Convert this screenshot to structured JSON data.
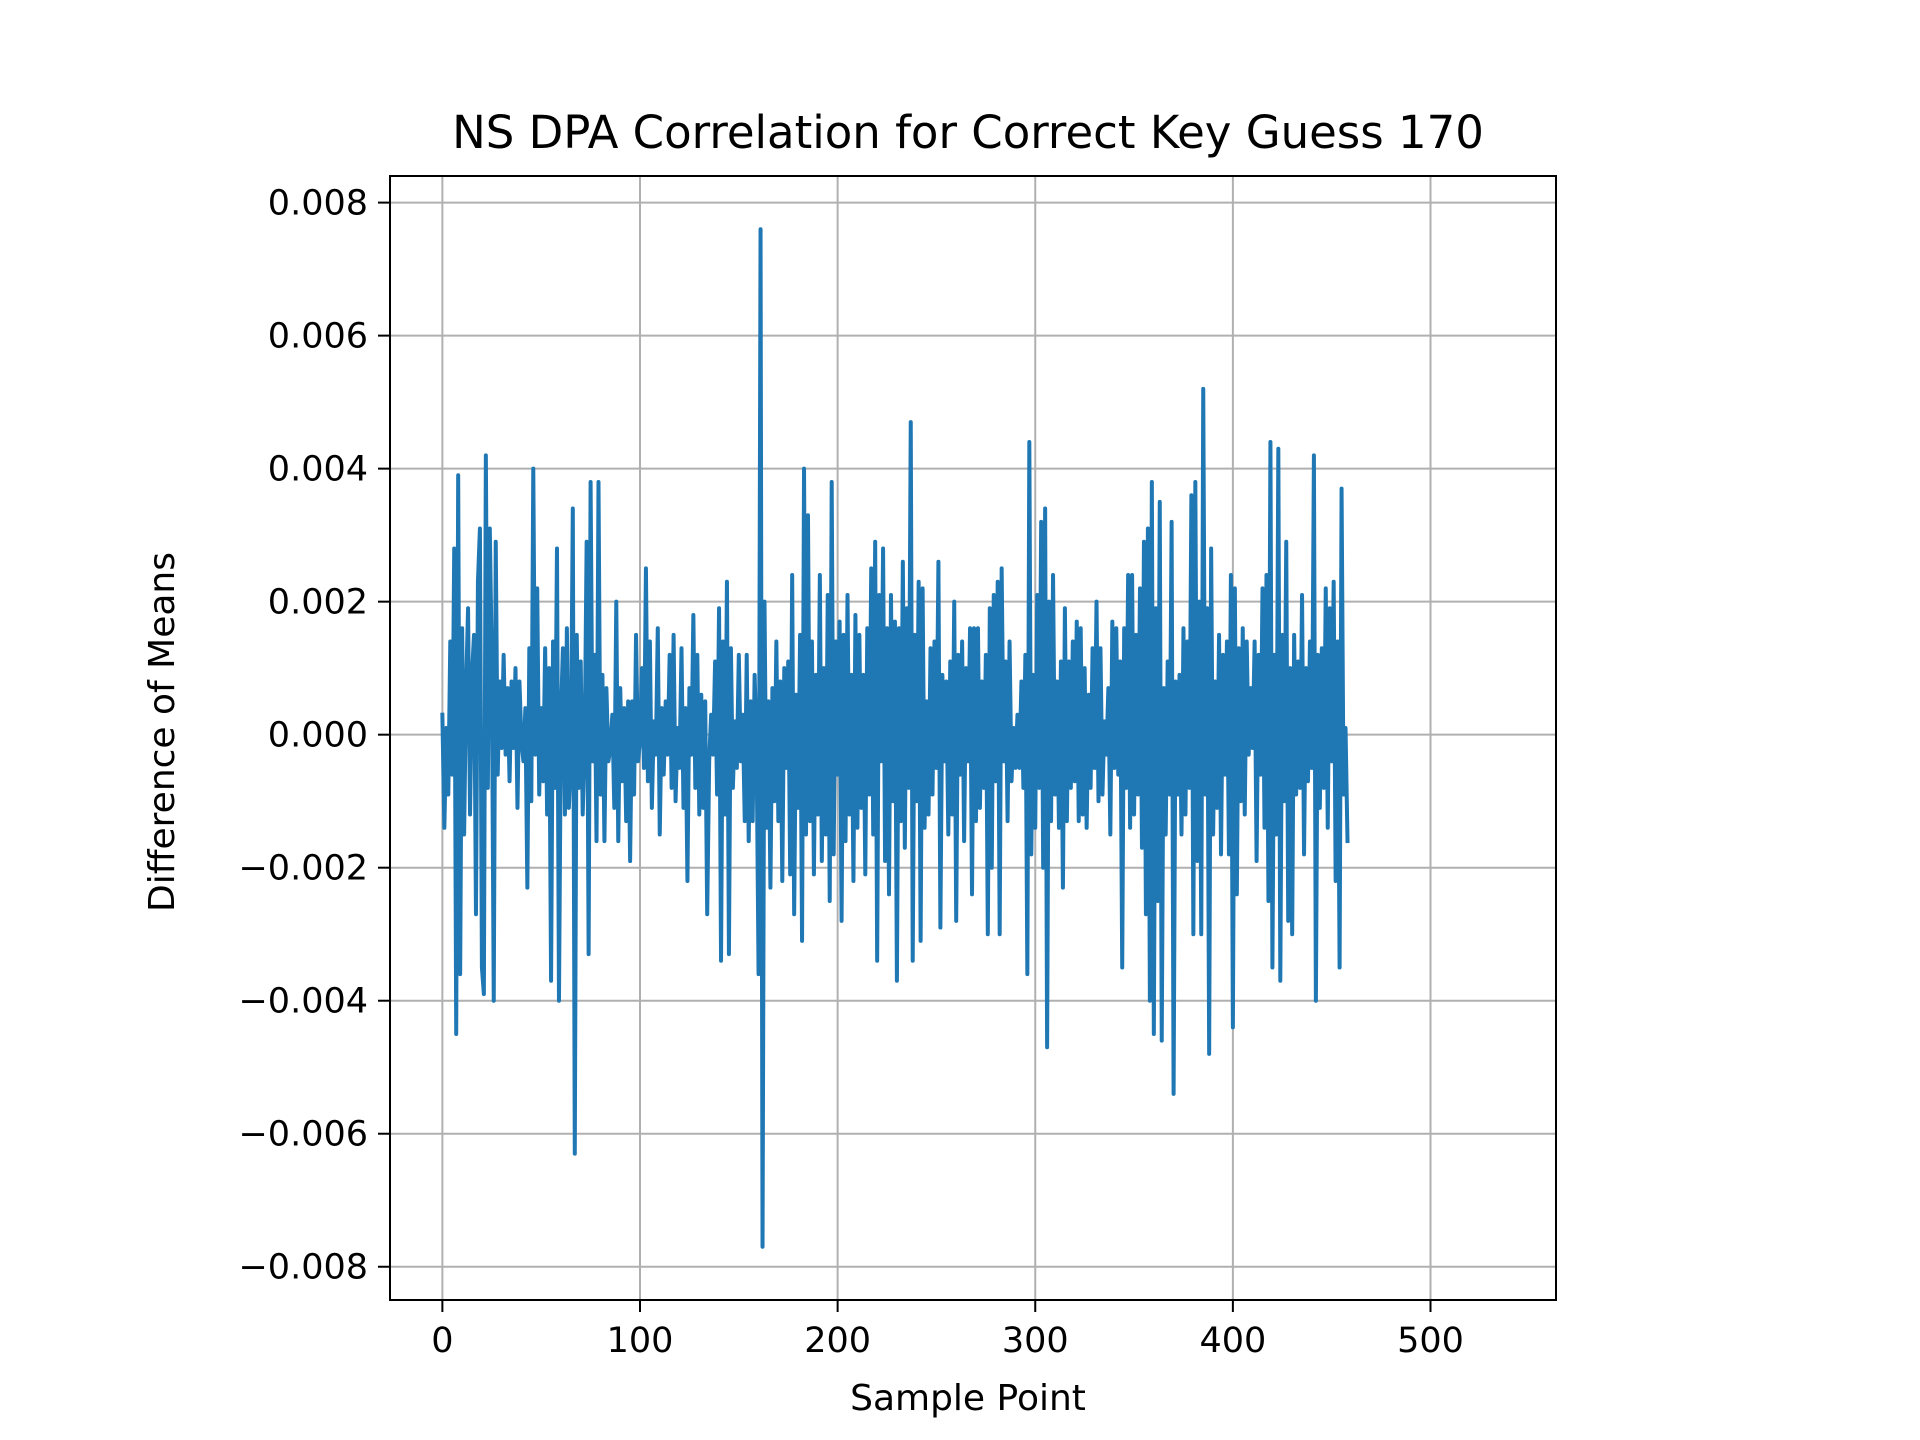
{
  "chart_data": {
    "type": "line",
    "title": "NS DPA Correlation for Correct Key Guess 170",
    "xlabel": "Sample Point",
    "ylabel": "Difference of Means",
    "xlim": [
      -26.5,
      563.5
    ],
    "ylim": [
      -0.0085,
      0.0084
    ],
    "x_ticks": [
      0,
      100,
      200,
      300,
      400,
      500
    ],
    "x_tick_labels": [
      "0",
      "100",
      "200",
      "300",
      "400",
      "500"
    ],
    "y_ticks": [
      -0.008,
      -0.006,
      -0.004,
      -0.002,
      0.0,
      0.002,
      0.004,
      0.006,
      0.008
    ],
    "y_tick_labels": [
      "−0.008",
      "−0.006",
      "−0.004",
      "−0.002",
      "0.000",
      "0.002",
      "0.004",
      "0.006",
      "0.008"
    ],
    "grid": true,
    "legend": "none",
    "series": [
      {
        "color": "#1f77b4",
        "x_start": 0,
        "x_step": 1,
        "values": [
          0.0003,
          -0.0014,
          0.0001,
          -0.0009,
          0.0014,
          -0.0006,
          0.0028,
          -0.0045,
          0.0039,
          -0.0036,
          0.0016,
          -0.0015,
          0.0007,
          0.0019,
          -0.0012,
          0.0009,
          0.0015,
          -0.0027,
          0.0023,
          0.0031,
          -0.0035,
          -0.0039,
          0.0042,
          -0.0008,
          0.0031,
          0.0011,
          -0.004,
          0.0029,
          -0.0006,
          0.0008,
          -0.0002,
          0.0012,
          -0.0003,
          0.0007,
          -0.0007,
          0.0008,
          -0.0002,
          0.001,
          -0.0011,
          0.0008,
          -0.0001,
          -0.0004,
          0.0004,
          -0.0023,
          0.0013,
          -0.001,
          0.004,
          -0.0003,
          0.0022,
          -0.0009,
          0.0004,
          -0.0007,
          0.0013,
          -0.0012,
          0.001,
          -0.0037,
          0.0014,
          -0.0008,
          0.0028,
          -0.004,
          0.0003,
          0.0013,
          -0.0012,
          0.0016,
          -0.0011,
          -0.0004,
          0.0034,
          -0.0063,
          0.0015,
          -0.0008,
          0.0011,
          -0.0012,
          -0.0002,
          0.0029,
          -0.0033,
          0.0038,
          -0.0004,
          0.0012,
          -0.0016,
          0.0038,
          -0.0009,
          0.0009,
          -0.0016,
          0.0007,
          -0.0004,
          -0.0002,
          0.0003,
          -0.0011,
          0.002,
          -0.0016,
          0.0007,
          -0.0007,
          0.0004,
          -0.0013,
          0.0005,
          -0.0019,
          0.0005,
          -0.0009,
          0.0015,
          -0.0004,
          -0.0001,
          0.001,
          -0.0005,
          0.0025,
          -0.0007,
          0.0014,
          -0.0011,
          0.0002,
          -0.0003,
          0.0016,
          -0.0015,
          0.0004,
          -0.0006,
          0.0005,
          -0.0003,
          0.0012,
          -0.0008,
          0.0015,
          -0.001,
          0.0001,
          -0.0005,
          0.0013,
          -0.0011,
          0.0004,
          -0.0022,
          0.0007,
          -0.0003,
          0.0018,
          -0.0008,
          0.0012,
          -0.0012,
          0.0006,
          -0.0011,
          0.0005,
          -0.0027,
          -0.0004,
          0.0003,
          -0.0003,
          0.0011,
          -0.0009,
          0.0019,
          -0.0034,
          0.0014,
          -0.0012,
          0.0023,
          -0.0033,
          0.0013,
          -0.0008,
          0.0002,
          -0.0005,
          0.0012,
          -0.0004,
          0.0003,
          -0.0013,
          0.0012,
          -0.0016,
          0.0005,
          -0.0013,
          0.0009,
          -0.0002,
          -0.0036,
          0.0076,
          -0.0077,
          0.002,
          -0.0014,
          0.0005,
          -0.0023,
          0.0007,
          -0.001,
          0.0014,
          -0.0013,
          0.0008,
          -0.0022,
          0.001,
          -0.0005,
          0.0011,
          -0.0021,
          0.0024,
          -0.0027,
          0.0006,
          -0.0011,
          0.0015,
          -0.0031,
          0.004,
          -0.0015,
          0.0033,
          -0.0013,
          0.0014,
          -0.0021,
          0.0009,
          -0.0012,
          0.0024,
          -0.0019,
          0.001,
          -0.0015,
          0.0021,
          -0.0025,
          0.0038,
          -0.0018,
          0.0014,
          -0.0006,
          0.0017,
          -0.0028,
          0.0015,
          -0.0016,
          0.0021,
          -0.0012,
          0.0009,
          -0.0022,
          0.0018,
          -0.0014,
          0.0015,
          -0.0011,
          0.0009,
          -0.0021,
          0.0016,
          -0.0009,
          0.0025,
          -0.0015,
          0.0029,
          -0.0034,
          0.0021,
          -0.0004,
          0.0028,
          -0.0019,
          0.0016,
          -0.0024,
          0.0021,
          -0.001,
          0.0017,
          -0.0037,
          0.0016,
          -0.0013,
          0.0026,
          -0.0017,
          0.0019,
          -0.0008,
          0.0047,
          -0.0034,
          0.0015,
          -0.001,
          0.0023,
          -0.0031,
          0.0022,
          -0.0014,
          0.0005,
          -0.0012,
          0.0013,
          -0.0009,
          0.0014,
          -0.0005,
          0.0026,
          -0.0029,
          0.0009,
          -0.0004,
          0.0008,
          -0.0015,
          0.0011,
          -0.0012,
          0.002,
          -0.0028,
          0.0012,
          -0.0006,
          0.0014,
          -0.0016,
          0.001,
          -0.0004,
          0.0016,
          -0.0024,
          0.0016,
          -0.0013,
          0.0016,
          -0.0011,
          0.0008,
          -0.0008,
          0.0012,
          -0.003,
          0.0019,
          -0.002,
          0.0021,
          -0.0007,
          0.0023,
          -0.003,
          0.0025,
          -0.0004,
          0.0011,
          -0.0013,
          0.0014,
          -0.0007,
          0.0001,
          -0.0005,
          0.0003,
          -0.0005,
          0.0008,
          -0.0008,
          0.0012,
          -0.0036,
          0.0044,
          -0.0018,
          0.0009,
          -0.0014,
          0.0021,
          -0.0008,
          0.0032,
          -0.002,
          0.0034,
          -0.0047,
          0.002,
          -0.0013,
          0.0024,
          -0.0009,
          0.0008,
          -0.0014,
          0.0011,
          -0.0023,
          0.0019,
          -0.0013,
          0.0011,
          -0.0008,
          0.0014,
          -0.0007,
          0.0017,
          -0.0013,
          0.0016,
          -0.0012,
          0.001,
          -0.0014,
          0.0006,
          -0.0008,
          0.0013,
          -0.0005,
          0.002,
          -0.001,
          0.0013,
          -0.0009,
          0.0002,
          -0.0003,
          0.0007,
          -0.0015,
          0.0017,
          -0.0005,
          0.0016,
          -0.0006,
          0.0011,
          -0.0035,
          0.0016,
          -0.0008,
          0.0024,
          -0.0014,
          0.0024,
          -0.0012,
          0.0015,
          -0.0009,
          0.0022,
          -0.0017,
          0.0029,
          -0.0027,
          0.0031,
          -0.004,
          0.0038,
          -0.0045,
          0.0019,
          -0.0025,
          0.0035,
          -0.0046,
          0.0007,
          -0.0015,
          0.0011,
          -0.0009,
          0.0032,
          -0.0054,
          0.0008,
          -0.0009,
          0.0009,
          -0.0015,
          0.0016,
          -0.0012,
          0.0014,
          -0.0008,
          0.0036,
          -0.003,
          0.0038,
          -0.0019,
          0.002,
          -0.003,
          0.0052,
          -0.0009,
          0.0019,
          -0.0048,
          0.0028,
          -0.0015,
          0.0008,
          -0.0011,
          0.0015,
          -0.0018,
          0.0012,
          -0.0006,
          0.0014,
          -0.0018,
          0.0024,
          -0.0044,
          0.0022,
          -0.0024,
          0.0013,
          -0.001,
          0.0016,
          -0.0012,
          0.0014,
          -0.0003,
          0.0007,
          -0.0002,
          0.0014,
          -0.0019,
          0.0012,
          -0.0006,
          0.0022,
          -0.0014,
          0.0024,
          -0.0025,
          0.0044,
          -0.0035,
          0.0012,
          -0.0015,
          0.0043,
          -0.0037,
          0.0015,
          -0.001,
          0.0029,
          -0.0028,
          0.001,
          -0.003,
          0.0015,
          -0.0009,
          0.0011,
          -0.0008,
          0.0021,
          -0.0018,
          0.001,
          -0.0007,
          0.0014,
          -0.0005,
          0.0042,
          -0.004,
          0.0012,
          -0.0011,
          0.0013,
          -0.0008,
          0.0022,
          -0.0014,
          0.0019,
          -0.0004,
          0.0023,
          -0.0022,
          0.0014,
          -0.0035,
          0.0037,
          -0.0009,
          0.0001,
          -0.0016
        ]
      }
    ]
  }
}
